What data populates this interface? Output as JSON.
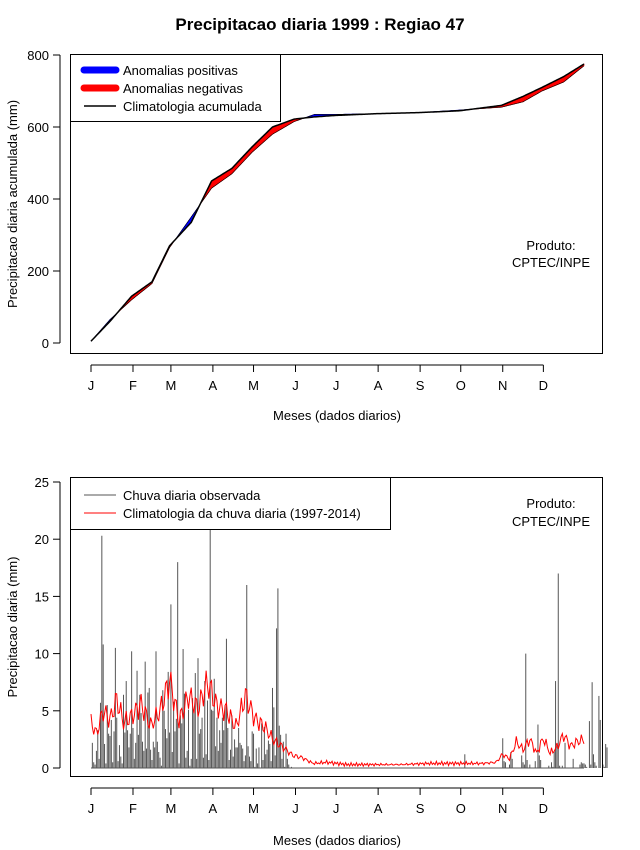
{
  "title": "Precipitacao diaria 1999 : Regiao 47",
  "chart_data": [
    {
      "type": "area",
      "ylabel": "Precipitacao diaria acumulada (mm)",
      "xlabel": "Meses (dados diarios)",
      "ylim": [
        0,
        800
      ],
      "yticks": [
        "0",
        "200",
        "400",
        "600",
        "800"
      ],
      "months": [
        "J",
        "F",
        "M",
        "A",
        "M",
        "J",
        "J",
        "A",
        "S",
        "O",
        "N",
        "D"
      ],
      "product_label": [
        "Produto:",
        "CPTEC/INPE"
      ],
      "colors": {
        "positive": "#0000ff",
        "negative": "#ff0000",
        "climatology": "#000000"
      },
      "legend": {
        "positive": "Anomalias positivas",
        "negative": "Anomalias negativas",
        "climatology": "Climatologia acumulada"
      },
      "climatology_cumulative": {
        "day": [
          1,
          15,
          31,
          46,
          59,
          75,
          90,
          105,
          120,
          135,
          151,
          166,
          181,
          212,
          243,
          273,
          304,
          320,
          334,
          350,
          365
        ],
        "mm": [
          5,
          60,
          130,
          170,
          270,
          335,
          450,
          485,
          545,
          600,
          622,
          628,
          632,
          637,
          640,
          645,
          660,
          685,
          710,
          740,
          775
        ]
      },
      "observed_cumulative": {
        "day": [
          1,
          15,
          31,
          46,
          59,
          75,
          90,
          105,
          120,
          135,
          151,
          166,
          181,
          212,
          243,
          273,
          304,
          320,
          334,
          350,
          365
        ],
        "mm": [
          5,
          65,
          120,
          165,
          265,
          350,
          430,
          470,
          530,
          580,
          615,
          635,
          635,
          637,
          640,
          647,
          655,
          670,
          700,
          725,
          770
        ]
      }
    },
    {
      "type": "bar",
      "ylabel": "Precipitacao diaria (mm)",
      "xlabel": "Meses (dados diarios)",
      "ylim": [
        0,
        25
      ],
      "yticks": [
        "0",
        "5",
        "10",
        "15",
        "20",
        "25"
      ],
      "months": [
        "J",
        "F",
        "M",
        "A",
        "M",
        "J",
        "J",
        "A",
        "S",
        "O",
        "N",
        "D"
      ],
      "product_label": [
        "Produto:",
        "CPTEC/INPE"
      ],
      "colors": {
        "observed": "#555555",
        "climatology": "#ff0000"
      },
      "legend": {
        "observed": "Chuva diaria observada",
        "climatology": "Climatologia da chuva diaria (1997-2014)"
      },
      "observed_daily_mm": [
        0,
        2.2,
        0.5,
        0.3,
        1.5,
        3.3,
        0.8,
        5.7,
        20.3,
        10.8,
        2.1,
        0.4,
        5.5,
        3,
        2.8,
        4.2,
        0.5,
        3.2,
        10.5,
        4.4,
        0.6,
        2,
        1,
        0.4,
        6.4,
        3.1,
        7.6,
        3.3,
        1.8,
        3,
        10.2,
        3.5,
        0.8,
        2.2,
        8.5,
        2.9,
        6.4,
        4.8,
        2.3,
        1.5,
        9.3,
        1.7,
        6.6,
        7,
        1.6,
        0.7,
        2.3,
        1.8,
        10.2,
        2.3,
        1.4,
        0.9,
        0.2,
        6.8,
        5,
        3.4,
        2.6,
        8.4,
        3.1,
        14.3,
        1.4,
        5.8,
        3.2,
        4.3,
        18,
        0.4,
        4.6,
        3.9,
        10.4,
        6.5,
        0.9,
        1.5,
        5.1,
        0.2,
        0.8,
        6.1,
        4.9,
        8.3,
        0.8,
        9.6,
        3,
        3.4,
        4.4,
        0.9,
        7.6,
        1.2,
        5.9,
        0.7,
        22,
        5.1,
        5,
        7.8,
        1.9,
        4.4,
        1.5,
        3.3,
        2.2,
        4.4,
        3.3,
        5.4,
        11.3,
        3.5,
        0.7,
        1.6,
        4.6,
        1,
        2.5,
        1.8,
        1.8,
        3.5,
        2.2,
        2,
        1.7,
        0.6,
        1.1,
        16,
        1.9,
        1,
        0.6,
        3.2,
        3,
        0.1,
        1.7,
        0.4,
        1.8,
        0,
        3.9,
        0.7,
        3.6,
        1.2,
        1.6,
        2.4,
        2.1,
        0.6,
        7,
        5.3,
        1.1,
        12.2,
        15.7,
        3.7,
        2.9,
        0.8,
        2.3,
        0.1,
        3,
        0.8,
        0.3,
        0,
        0.1,
        0,
        0,
        0,
        0,
        0,
        0,
        0,
        0,
        0,
        0,
        0,
        0,
        0,
        0,
        0,
        0,
        0,
        0,
        0,
        0,
        0,
        0,
        0,
        0,
        0,
        0,
        0,
        0,
        0,
        0,
        0,
        0,
        0,
        0,
        0,
        0,
        0,
        0,
        0,
        0,
        0,
        0,
        0,
        0,
        0,
        0,
        0,
        0,
        0,
        0,
        0,
        0,
        0,
        0,
        0,
        0,
        0,
        0,
        0,
        0,
        0,
        0,
        0,
        0,
        0,
        0,
        0,
        0,
        0,
        0,
        0,
        0,
        0,
        0,
        0,
        0,
        0,
        0,
        0,
        0,
        0,
        0,
        0,
        0,
        0,
        0,
        0,
        0,
        0,
        0,
        0,
        0,
        0,
        0,
        0,
        0,
        0,
        0,
        0,
        0,
        0,
        0,
        0,
        0,
        0,
        0,
        0,
        0,
        0,
        0,
        0,
        0,
        0,
        0,
        0,
        0,
        0,
        0,
        0,
        0,
        0,
        0,
        0,
        0,
        0,
        0,
        0,
        1.2,
        0,
        0,
        0,
        0,
        0,
        0,
        0,
        0,
        0,
        0,
        0,
        0,
        0,
        0,
        0,
        0,
        0,
        0,
        0,
        0,
        0,
        0,
        0,
        0,
        0,
        0,
        0,
        2.6,
        0.6,
        0.5,
        0,
        0,
        0.3,
        1.4,
        0.8,
        0,
        0,
        0,
        0,
        0,
        0,
        1.1,
        0.5,
        0.3,
        10,
        0.7,
        0,
        0.3,
        0,
        0,
        0,
        0.6,
        0,
        3.8,
        1.1,
        0.7,
        0,
        0,
        0,
        0,
        0,
        0.2,
        0,
        0.5,
        0.1,
        1.4,
        7.6,
        1.9,
        17,
        0.2,
        0,
        0.2,
        0,
        2.2,
        0,
        0,
        0,
        0,
        0,
        0.8,
        0,
        0,
        0,
        0,
        0.3,
        0.5,
        0.4,
        0.4,
        0.3,
        0.1,
        0,
        4.1,
        0.3,
        7.5,
        1.2,
        0.5,
        0.2,
        0,
        6.3,
        4.2,
        0,
        0.3,
        0.1,
        2.1,
        1.8
      ],
      "climatology_daily": {
        "day": [
          1,
          5,
          10,
          15,
          20,
          25,
          31,
          38,
          45,
          52,
          59,
          66,
          73,
          80,
          87,
          94,
          101,
          108,
          115,
          122,
          129,
          136,
          143,
          150,
          157,
          165,
          175,
          190,
          210,
          230,
          250,
          270,
          290,
          300,
          305,
          310,
          315,
          320,
          325,
          330,
          335,
          340,
          345,
          350,
          355,
          360,
          365
        ],
        "mm": [
          4,
          3,
          5,
          4.2,
          6,
          4,
          4.5,
          5.6,
          3.7,
          5,
          7.7,
          4.1,
          6.3,
          5.2,
          7.5,
          5.4,
          5,
          3.6,
          6.3,
          4.3,
          3.6,
          2.4,
          1.8,
          1.1,
          0.9,
          0.4,
          0.5,
          0.3,
          0.3,
          0.3,
          0.4,
          0.4,
          0.4,
          0.5,
          1.2,
          0.8,
          2.3,
          1.6,
          2.5,
          1.3,
          2.6,
          1.3,
          1.8,
          2.9,
          1.9,
          2.3,
          2.5
        ]
      }
    }
  ]
}
